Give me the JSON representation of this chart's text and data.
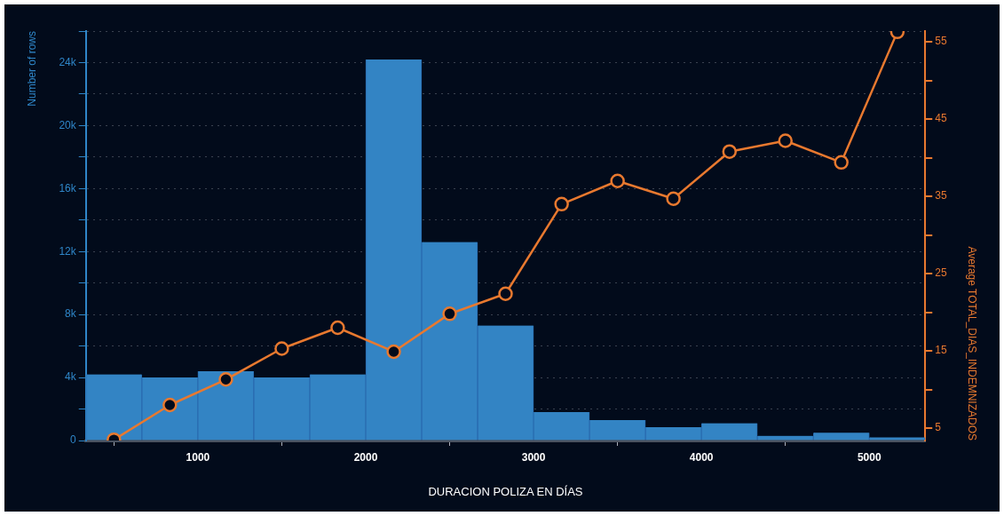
{
  "chart_data": {
    "type": "histogram",
    "xlabel": "DURACION POLIZA EN DÍAS",
    "ylabel": "Number of rows",
    "y2label": "Average TOTAL_DIAS_INDEMNIZADOS",
    "bins": [
      333,
      667,
      1000,
      1333,
      1667,
      2000,
      2333,
      2667,
      3000,
      3333,
      3667,
      4000,
      4333,
      4667,
      5000,
      5333
    ],
    "series": [
      {
        "color": "#3384c4",
        "values": [
          4200,
          4000,
          4400,
          4000,
          4200,
          24200,
          12600,
          7300,
          1800,
          1300,
          850,
          1100,
          300,
          500,
          200
        ]
      },
      {
        "type": "line",
        "axis": "y2",
        "color": "#e8792f",
        "x": [
          500,
          833,
          1167,
          1500,
          1833,
          2167,
          2500,
          2833,
          3167,
          3500,
          3833,
          4167,
          4500,
          4833,
          5167
        ],
        "values": [
          3.5,
          8.0,
          11.3,
          15.3,
          18.0,
          14.9,
          19.8,
          22.4,
          34.0,
          37.0,
          34.7,
          40.8,
          42.2,
          39.4,
          56.3
        ]
      }
    ],
    "xlim": [
      333,
      5333
    ],
    "xticks": [
      1000,
      2000,
      3000,
      4000,
      5000
    ],
    "ylim": [
      0,
      26000
    ],
    "yticks": [
      0,
      {
        "value": 2000,
        "label": null
      },
      {
        "value": 4000,
        "label": "4k"
      },
      {
        "value": 6000,
        "label": null
      },
      {
        "value": 8000,
        "label": "8k"
      },
      {
        "value": 10000,
        "label": null
      },
      {
        "value": 12000,
        "label": "12k"
      },
      {
        "value": 14000,
        "label": null
      },
      {
        "value": 16000,
        "label": "16k"
      },
      {
        "value": 18000,
        "label": null
      },
      {
        "value": 20000,
        "label": "20k"
      },
      {
        "value": 22000,
        "label": null
      },
      {
        "value": 24000,
        "label": "24k"
      },
      {
        "value": 26000,
        "label": null
      }
    ],
    "y2lim": [
      3.4,
      56.4
    ],
    "y2ticks": [
      5,
      {
        "value": 10,
        "label": null
      },
      15,
      {
        "value": 20,
        "label": null
      },
      25,
      {
        "value": 30,
        "label": null
      },
      35,
      {
        "value": 40,
        "label": null
      },
      45,
      {
        "value": 50,
        "label": null
      },
      55
    ],
    "grid": "y",
    "legend": false,
    "marker": "circle",
    "line_style": "solid"
  }
}
